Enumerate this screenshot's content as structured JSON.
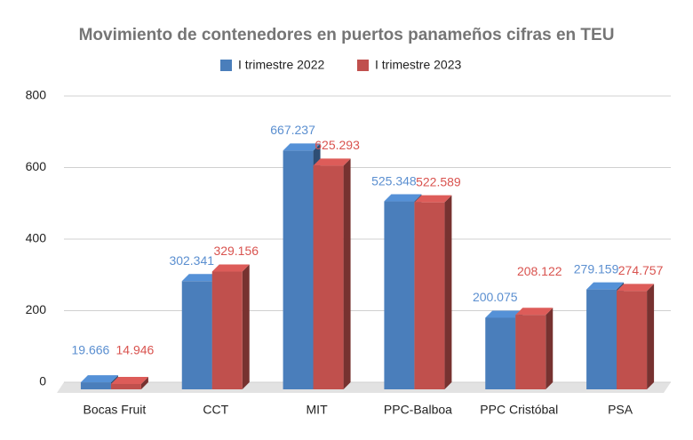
{
  "chart_data": {
    "type": "bar3d",
    "title": "Movimiento de contenedores en puertos panameños cifras en TEU",
    "categories": [
      "Bocas Fruit",
      "CCT",
      "MIT",
      "PPC-Balboa",
      "PPC Cristóbal",
      "PSA"
    ],
    "series": [
      {
        "name": "I trimestre 2022",
        "color": "#4a7ebb",
        "values": [
          19.666,
          302.341,
          667.237,
          525.348,
          200.075,
          279.159
        ]
      },
      {
        "name": "I trimestre 2023",
        "color": "#c0504d",
        "values": [
          14.946,
          329.156,
          625.293,
          522.589,
          208.122,
          274.757
        ]
      }
    ],
    "ylim": [
      0,
      800
    ],
    "yticks": [
      0,
      200,
      400,
      600,
      800
    ],
    "grid": true,
    "legend": "top"
  }
}
